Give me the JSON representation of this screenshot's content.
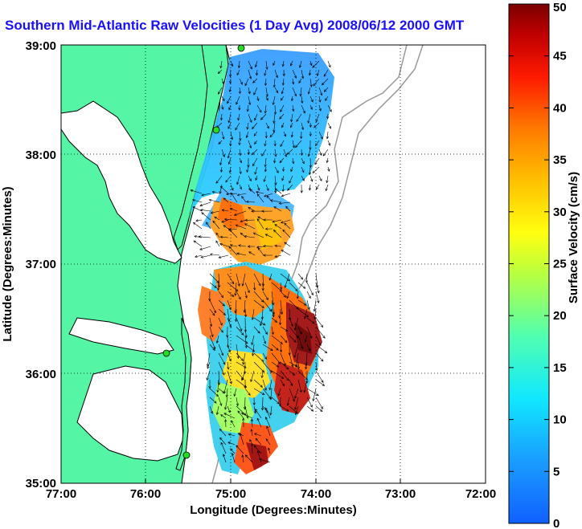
{
  "title": "Southern Mid-Atlantic Raw Velocities (1 Day Avg) 2008/06/12 2000 GMT",
  "xlabel": "Longitude (Degrees:Minutes)",
  "ylabel": "Latitude (Degrees:Minutes)",
  "x_ticks": [
    "77:00",
    "76:00",
    "75:00",
    "74:00",
    "73:00",
    "72:00"
  ],
  "y_ticks": [
    "39:00",
    "38:00",
    "37:00",
    "36:00",
    "35:00"
  ],
  "colorbar": {
    "label": "Surface Velocity (cm/s)",
    "ticks": [
      "0",
      "5",
      "10",
      "15",
      "20",
      "25",
      "30",
      "35",
      "40",
      "45",
      "50"
    ],
    "min": 0,
    "max": 50
  },
  "colors": {
    "land": "#55f5a6",
    "title": "#1a10ff",
    "station": "#22dd22"
  }
}
